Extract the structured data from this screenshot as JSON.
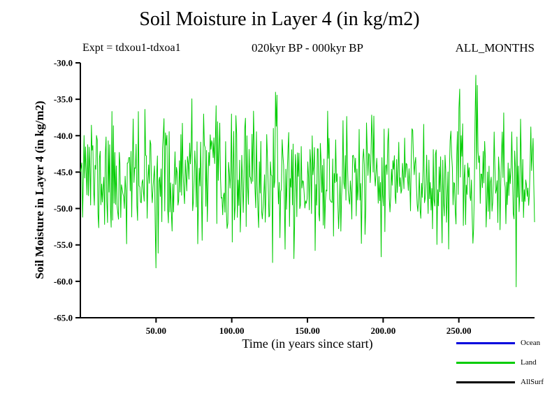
{
  "chart_data": {
    "type": "line",
    "title": "Soil Moisture in Layer 4 (in kg/m2)",
    "annotations": {
      "top_left": "Expt = tdxou1-tdxoa1",
      "top_center": "020kyr BP - 000kyr BP",
      "top_right": "ALL_MONTHS"
    },
    "xlabel": "Time (in years since start)",
    "ylabel": "Soil Moisture in Layer 4 (in kg/m2)",
    "xlim": [
      0,
      300
    ],
    "ylim": [
      -65,
      -30
    ],
    "xticks": [
      50,
      100,
      150,
      200,
      250
    ],
    "xtick_labels": [
      "50.00",
      "100.00",
      "150.00",
      "200.00",
      "250.00"
    ],
    "yticks": [
      -30,
      -35,
      -40,
      -45,
      -50,
      -55,
      -60,
      -65
    ],
    "ytick_labels": [
      "-30.0",
      "-35.0",
      "-40.0",
      "-45.0",
      "-50.0",
      "-55.0",
      "-60.0",
      "-65.0"
    ],
    "grid": false,
    "legend_position": "bottom-right",
    "legend": [
      {
        "label": "Ocean",
        "color": "#0000dd"
      },
      {
        "label": "Land",
        "color": "#00cc00"
      },
      {
        "label": "AllSurf",
        "color": "#000000"
      }
    ],
    "series": [
      {
        "name": "Land",
        "color": "#00cc00",
        "style": "dense high-frequency noisy line",
        "approx": {
          "mean": -46.2,
          "std": 4.2,
          "observed_min": -61.5,
          "observed_max": -31.3,
          "n_points": 620,
          "seed": 11,
          "start_lift": 6
        }
      }
    ],
    "note": "Only the green Land series is visible in the plot area; Ocean and AllSurf appear only in the legend."
  },
  "colors": {
    "axis": "#000000",
    "background": "#ffffff",
    "land": "#00cc00",
    "ocean": "#0000dd",
    "allsurf": "#000000"
  }
}
